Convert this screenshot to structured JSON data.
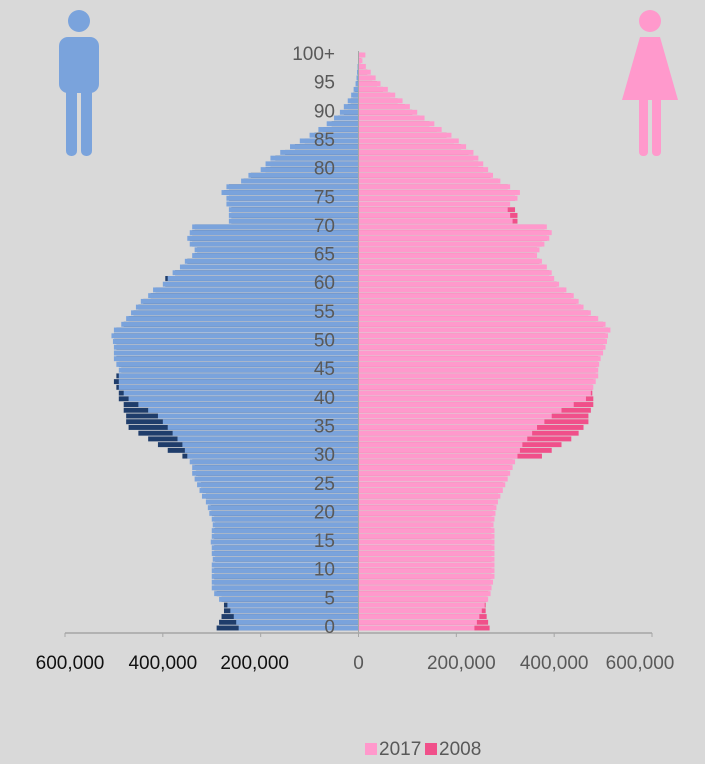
{
  "chart_data": {
    "type": "pyramid",
    "categories": [
      0,
      null,
      null,
      null,
      null,
      5,
      null,
      null,
      null,
      null,
      10,
      null,
      null,
      null,
      null,
      15,
      null,
      null,
      null,
      null,
      20,
      null,
      null,
      null,
      null,
      25,
      null,
      null,
      null,
      null,
      30,
      null,
      null,
      null,
      null,
      35,
      null,
      null,
      null,
      null,
      40,
      null,
      null,
      null,
      null,
      45,
      null,
      null,
      null,
      null,
      50,
      null,
      null,
      null,
      null,
      55,
      null,
      null,
      null,
      null,
      60,
      null,
      null,
      null,
      null,
      65,
      null,
      null,
      null,
      null,
      70,
      null,
      null,
      null,
      null,
      75,
      null,
      null,
      null,
      null,
      80,
      null,
      null,
      null,
      null,
      85,
      null,
      null,
      null,
      null,
      90,
      null,
      null,
      null,
      null,
      95,
      null,
      null,
      null,
      null,
      "100+"
    ],
    "series": [
      {
        "name": "2017",
        "color": "#ff99cc",
        "male_color": "#7aa3dc",
        "male_values": [
          -245000,
          -250000,
          -255000,
          -262000,
          -268000,
          -285000,
          -295000,
          -300000,
          -300000,
          -300000,
          -300000,
          -300000,
          -298000,
          -300000,
          -300000,
          -302000,
          -300000,
          -300000,
          -298000,
          -300000,
          -305000,
          -308000,
          -312000,
          -320000,
          -325000,
          -330000,
          -335000,
          -340000,
          -340000,
          -345000,
          -350000,
          -355000,
          -360000,
          -370000,
          -380000,
          -390000,
          -400000,
          -410000,
          -430000,
          -450000,
          -470000,
          -480000,
          -490000,
          -490000,
          -490000,
          -490000,
          -495000,
          -500000,
          -500000,
          -500000,
          -502000,
          -505000,
          -500000,
          -485000,
          -475000,
          -465000,
          -455000,
          -445000,
          -430000,
          -420000,
          -400000,
          -390000,
          -380000,
          -365000,
          -355000,
          -340000,
          -335000,
          -345000,
          -350000,
          -345000,
          -340000,
          -265000,
          -265000,
          -265000,
          -270000,
          -270000,
          -280000,
          -270000,
          -240000,
          -225000,
          -200000,
          -190000,
          -180000,
          -160000,
          -140000,
          -120000,
          -100000,
          -82000,
          -65000,
          -50000,
          -38000,
          -30000,
          -22000,
          -15000,
          -10000,
          -6000,
          -4000,
          -3000,
          -2000,
          -1000,
          -1000
        ],
        "female_values": [
          237000,
          242000,
          247000,
          252000,
          258000,
          265000,
          270000,
          272000,
          275000,
          278000,
          278000,
          278000,
          278000,
          278000,
          278000,
          278000,
          278000,
          278000,
          276000,
          278000,
          280000,
          282000,
          285000,
          290000,
          295000,
          300000,
          305000,
          310000,
          315000,
          320000,
          325000,
          330000,
          335000,
          345000,
          355000,
          365000,
          380000,
          395000,
          415000,
          440000,
          465000,
          475000,
          480000,
          485000,
          490000,
          490000,
          492000,
          495000,
          500000,
          505000,
          508000,
          510000,
          515000,
          505000,
          490000,
          475000,
          460000,
          450000,
          440000,
          425000,
          410000,
          400000,
          395000,
          385000,
          375000,
          365000,
          370000,
          380000,
          390000,
          395000,
          385000,
          315000,
          310000,
          305000,
          310000,
          325000,
          330000,
          310000,
          290000,
          275000,
          265000,
          255000,
          245000,
          235000,
          220000,
          205000,
          190000,
          170000,
          155000,
          135000,
          120000,
          105000,
          90000,
          75000,
          60000,
          45000,
          35000,
          25000,
          15000,
          8000,
          14000
        ]
      },
      {
        "name": "2008",
        "color": "#f0508a",
        "male_color": "#1f3d6b",
        "male_values": [
          -290000,
          -285000,
          -280000,
          -275000,
          -275000,
          -280000,
          -290000,
          -295000,
          -295000,
          -295000,
          -295000,
          -295000,
          -293000,
          -295000,
          -295000,
          -297000,
          -295000,
          -295000,
          -293000,
          -295000,
          -300000,
          -302000,
          -305000,
          -312000,
          -318000,
          -322000,
          -328000,
          -332000,
          -335000,
          -340000,
          -360000,
          -390000,
          -410000,
          -430000,
          -450000,
          -470000,
          -475000,
          -475000,
          -480000,
          -480000,
          -490000,
          -490000,
          -495000,
          -500000,
          -495000,
          -485000,
          -490000,
          -495000,
          -495000,
          -495000,
          -498000,
          -500000,
          -495000,
          -480000,
          -470000,
          -460000,
          -450000,
          -440000,
          -425000,
          -415000,
          -395000,
          -395000,
          -375000,
          -360000,
          -350000,
          -335000,
          -330000,
          -340000,
          -345000,
          -340000,
          -335000,
          -260000,
          -260000,
          -260000,
          -265000,
          -265000,
          -275000,
          -265000,
          -235000,
          -220000,
          -190000,
          -180000,
          -170000,
          -150000,
          -130000,
          -110000,
          -90000,
          -72000,
          -55000,
          -42000,
          -30000,
          -22000,
          -16000,
          -11000,
          -7000,
          -4000,
          -3000,
          -2000,
          -1000,
          -1000,
          -1000
        ],
        "female_values": [
          268000,
          265000,
          262000,
          260000,
          260000,
          262000,
          265000,
          268000,
          270000,
          272000,
          272000,
          272000,
          272000,
          272000,
          272000,
          272000,
          272000,
          272000,
          270000,
          272000,
          274000,
          276000,
          280000,
          285000,
          290000,
          295000,
          300000,
          305000,
          310000,
          315000,
          375000,
          395000,
          415000,
          435000,
          450000,
          460000,
          470000,
          470000,
          475000,
          480000,
          480000,
          478000,
          478000,
          480000,
          485000,
          485000,
          488000,
          490000,
          495000,
          500000,
          503000,
          505000,
          510000,
          500000,
          485000,
          470000,
          455000,
          445000,
          435000,
          420000,
          405000,
          395000,
          390000,
          380000,
          370000,
          360000,
          365000,
          375000,
          385000,
          390000,
          380000,
          325000,
          325000,
          320000,
          305000,
          320000,
          325000,
          305000,
          285000,
          270000,
          255000,
          245000,
          235000,
          225000,
          210000,
          195000,
          180000,
          160000,
          145000,
          125000,
          110000,
          95000,
          80000,
          65000,
          50000,
          38000,
          28000,
          18000,
          10000,
          5000,
          8000
        ]
      }
    ],
    "xlim": [
      -600000,
      600000
    ],
    "xticks": [
      {
        "value": -600000,
        "label": "600,000"
      },
      {
        "value": -400000,
        "label": "400,000"
      },
      {
        "value": -200000,
        "label": "200,000"
      },
      0,
      {
        "value": 200000,
        "label": "200,000"
      },
      {
        "value": 400000,
        "label": "400,000"
      },
      {
        "value": 600000,
        "label": "600,000"
      }
    ]
  }
}
